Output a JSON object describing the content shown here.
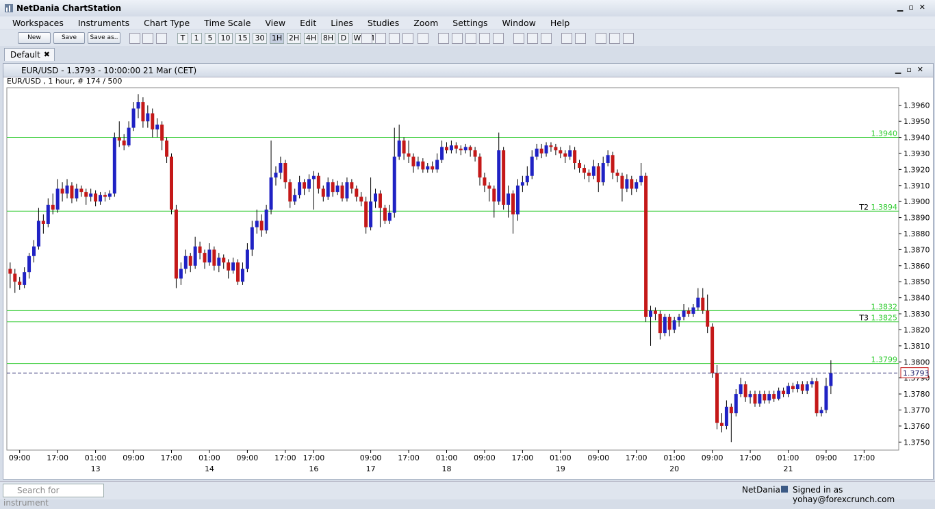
{
  "window": {
    "title": "NetDania ChartStation"
  },
  "menu": [
    "Workspaces",
    "Instruments",
    "Chart Type",
    "Time Scale",
    "View",
    "Edit",
    "Lines",
    "Studies",
    "Zoom",
    "Settings",
    "Window",
    "Help"
  ],
  "toolbar": {
    "buttons": [
      "New",
      "Save",
      "Save as.."
    ],
    "timeframes": [
      "T",
      "1",
      "5",
      "10",
      "15",
      "30",
      "1H",
      "2H",
      "4H",
      "8H",
      "D",
      "W",
      "M"
    ]
  },
  "tabs": [
    "Default"
  ],
  "chart_window": {
    "title": "EUR/USD - 1.3793 - 10:00:00  21 Mar (CET)"
  },
  "chart_data": {
    "type": "candlestick",
    "info": "EUR/USD , 1 hour, # 174 / 500",
    "up_color": "#1f22c4",
    "down_color": "#c41818",
    "grid": false,
    "xlim": [
      -0.7,
      187.3
    ],
    "ylim": [
      1.3745,
      1.3971
    ],
    "yticks": [
      {
        "value": 1.375,
        "label": "1.3750"
      },
      {
        "value": 1.376,
        "label": "1.3760"
      },
      {
        "value": 1.377,
        "label": "1.3770"
      },
      {
        "value": 1.378,
        "label": "1.3780"
      },
      {
        "value": 1.379,
        "label": "1.3790"
      },
      {
        "value": 1.38,
        "label": "1.3800"
      },
      {
        "value": 1.381,
        "label": "1.3810"
      },
      {
        "value": 1.382,
        "label": "1.3820"
      },
      {
        "value": 1.383,
        "label": "1.3830"
      },
      {
        "value": 1.384,
        "label": "1.3840"
      },
      {
        "value": 1.385,
        "label": "1.3850"
      },
      {
        "value": 1.386,
        "label": "1.3860"
      },
      {
        "value": 1.387,
        "label": "1.3870"
      },
      {
        "value": 1.388,
        "label": "1.3880"
      },
      {
        "value": 1.389,
        "label": "1.3890"
      },
      {
        "value": 1.39,
        "label": "1.3900"
      },
      {
        "value": 1.391,
        "label": "1.3910"
      },
      {
        "value": 1.392,
        "label": "1.3920"
      },
      {
        "value": 1.393,
        "label": "1.3930"
      },
      {
        "value": 1.394,
        "label": "1.3940"
      },
      {
        "value": 1.395,
        "label": "1.3950"
      },
      {
        "value": 1.396,
        "label": "1.3960"
      }
    ],
    "xticks": [
      {
        "value": 2,
        "label": "09:00"
      },
      {
        "value": 10,
        "label": "17:00"
      },
      {
        "value": 18,
        "label": "01:00"
      },
      {
        "value": 26,
        "label": "09:00"
      },
      {
        "value": 34,
        "label": "17:00"
      },
      {
        "value": 42,
        "label": "01:00"
      },
      {
        "value": 50,
        "label": "09:00"
      },
      {
        "value": 58,
        "label": "17:00"
      },
      {
        "value": 64,
        "label": "17:00"
      },
      {
        "value": 76,
        "label": "09:00"
      },
      {
        "value": 84,
        "label": "17:00"
      },
      {
        "value": 92,
        "label": "01:00"
      },
      {
        "value": 100,
        "label": "09:00"
      },
      {
        "value": 108,
        "label": "17:00"
      },
      {
        "value": 116,
        "label": "01:00"
      },
      {
        "value": 124,
        "label": "09:00"
      },
      {
        "value": 132,
        "label": "17:00"
      },
      {
        "value": 140,
        "label": "01:00"
      },
      {
        "value": 148,
        "label": "09:00"
      },
      {
        "value": 156,
        "label": "17:00"
      },
      {
        "value": 164,
        "label": "01:00"
      },
      {
        "value": 172,
        "label": "09:00"
      },
      {
        "value": 180,
        "label": "17:00"
      }
    ],
    "date_ticks": [
      {
        "value": 18,
        "label": "13"
      },
      {
        "value": 42,
        "label": "14"
      },
      {
        "value": 64,
        "label": "16"
      },
      {
        "value": 76,
        "label": "17"
      },
      {
        "value": 92,
        "label": "18"
      },
      {
        "value": 116,
        "label": "19"
      },
      {
        "value": 140,
        "label": "20"
      },
      {
        "value": 164,
        "label": "21"
      }
    ],
    "level_color": "#33cc33",
    "levels": [
      {
        "value": 1.394,
        "label": "1.3940"
      },
      {
        "value": 1.3894,
        "label": "1.3894",
        "tag": "T2"
      },
      {
        "value": 1.3832,
        "label": "1.3832"
      },
      {
        "value": 1.3825,
        "label": "1.3825",
        "tag": "T3"
      },
      {
        "value": 1.3799,
        "label": "1.3799"
      }
    ],
    "last_price": {
      "value": 1.3793,
      "label": "1.3793"
    },
    "candles": [
      [
        1.3858,
        1.3862,
        1.3846,
        1.3855
      ],
      [
        1.3855,
        1.3858,
        1.3843,
        1.385
      ],
      [
        1.385,
        1.3853,
        1.3845,
        1.3848
      ],
      [
        1.3848,
        1.3859,
        1.3846,
        1.3856
      ],
      [
        1.3856,
        1.3868,
        1.3852,
        1.3866
      ],
      [
        1.3866,
        1.3876,
        1.3862,
        1.3872
      ],
      [
        1.3872,
        1.3896,
        1.387,
        1.3888
      ],
      [
        1.3888,
        1.3892,
        1.388,
        1.3886
      ],
      [
        1.3886,
        1.3902,
        1.3884,
        1.3898
      ],
      [
        1.3898,
        1.3905,
        1.3892,
        1.3895
      ],
      [
        1.3895,
        1.3914,
        1.3893,
        1.3908
      ],
      [
        1.3908,
        1.3912,
        1.39,
        1.3905
      ],
      [
        1.3905,
        1.3914,
        1.3902,
        1.391
      ],
      [
        1.391,
        1.3912,
        1.3899,
        1.3902
      ],
      [
        1.3902,
        1.3911,
        1.39,
        1.3908
      ],
      [
        1.3908,
        1.391,
        1.3903,
        1.3906
      ],
      [
        1.3906,
        1.3908,
        1.3898,
        1.3903
      ],
      [
        1.3903,
        1.3908,
        1.39,
        1.3905
      ],
      [
        1.3905,
        1.3907,
        1.3897,
        1.39
      ],
      [
        1.39,
        1.3906,
        1.3898,
        1.3904
      ],
      [
        1.3904,
        1.3906,
        1.39,
        1.3903
      ],
      [
        1.3903,
        1.3907,
        1.3901,
        1.3905
      ],
      [
        1.3905,
        1.3943,
        1.3903,
        1.394
      ],
      [
        1.394,
        1.395,
        1.3934,
        1.3938
      ],
      [
        1.3938,
        1.3942,
        1.3932,
        1.3935
      ],
      [
        1.3935,
        1.395,
        1.3934,
        1.3946
      ],
      [
        1.3946,
        1.3962,
        1.3944,
        1.3958
      ],
      [
        1.3958,
        1.3967,
        1.3952,
        1.3962
      ],
      [
        1.3962,
        1.3965,
        1.3946,
        1.395
      ],
      [
        1.395,
        1.396,
        1.3946,
        1.3955
      ],
      [
        1.3955,
        1.3958,
        1.394,
        1.3945
      ],
      [
        1.3945,
        1.3952,
        1.394,
        1.3948
      ],
      [
        1.3948,
        1.395,
        1.3932,
        1.3938
      ],
      [
        1.3938,
        1.394,
        1.3924,
        1.3928
      ],
      [
        1.3928,
        1.393,
        1.3892,
        1.3895
      ],
      [
        1.3895,
        1.3898,
        1.3846,
        1.3852
      ],
      [
        1.3852,
        1.3862,
        1.3848,
        1.3858
      ],
      [
        1.3858,
        1.387,
        1.3855,
        1.3866
      ],
      [
        1.3866,
        1.3868,
        1.3856,
        1.386
      ],
      [
        1.386,
        1.3878,
        1.3858,
        1.3872
      ],
      [
        1.3872,
        1.3875,
        1.3864,
        1.3868
      ],
      [
        1.3868,
        1.387,
        1.3858,
        1.3862
      ],
      [
        1.3862,
        1.3874,
        1.386,
        1.387
      ],
      [
        1.387,
        1.3872,
        1.3857,
        1.386
      ],
      [
        1.386,
        1.3868,
        1.3856,
        1.3865
      ],
      [
        1.3865,
        1.3867,
        1.3858,
        1.3862
      ],
      [
        1.3862,
        1.3864,
        1.3852,
        1.3857
      ],
      [
        1.3857,
        1.3865,
        1.3855,
        1.3862
      ],
      [
        1.3862,
        1.3864,
        1.3848,
        1.385
      ],
      [
        1.385,
        1.3862,
        1.3848,
        1.3858
      ],
      [
        1.3858,
        1.3874,
        1.3856,
        1.387
      ],
      [
        1.387,
        1.3888,
        1.3866,
        1.3884
      ],
      [
        1.3884,
        1.3895,
        1.388,
        1.3888
      ],
      [
        1.3888,
        1.3892,
        1.3878,
        1.3882
      ],
      [
        1.3882,
        1.3898,
        1.388,
        1.3895
      ],
      [
        1.3895,
        1.3938,
        1.3892,
        1.3915
      ],
      [
        1.3915,
        1.3922,
        1.391,
        1.3918
      ],
      [
        1.3918,
        1.3928,
        1.3914,
        1.3924
      ],
      [
        1.3924,
        1.3926,
        1.3908,
        1.3912
      ],
      [
        1.3912,
        1.3914,
        1.3896,
        1.39
      ],
      [
        1.39,
        1.3908,
        1.3898,
        1.3904
      ],
      [
        1.3904,
        1.3916,
        1.3902,
        1.3912
      ],
      [
        1.3912,
        1.3914,
        1.3904,
        1.3908
      ],
      [
        1.3908,
        1.3917,
        1.3906,
        1.3914
      ],
      [
        1.3914,
        1.3919,
        1.3895,
        1.3916
      ],
      [
        1.3916,
        1.3918,
        1.3905,
        1.3908
      ],
      [
        1.3908,
        1.391,
        1.39,
        1.3903
      ],
      [
        1.3903,
        1.3915,
        1.3901,
        1.3912
      ],
      [
        1.3912,
        1.3914,
        1.3903,
        1.3906
      ],
      [
        1.3906,
        1.3913,
        1.3904,
        1.391
      ],
      [
        1.391,
        1.3912,
        1.39,
        1.3902
      ],
      [
        1.3902,
        1.3915,
        1.39,
        1.3912
      ],
      [
        1.3912,
        1.3914,
        1.3905,
        1.3908
      ],
      [
        1.3908,
        1.391,
        1.39,
        1.3903
      ],
      [
        1.3903,
        1.3906,
        1.3897,
        1.39
      ],
      [
        1.39,
        1.3903,
        1.388,
        1.3884
      ],
      [
        1.3884,
        1.3915,
        1.3882,
        1.39
      ],
      [
        1.39,
        1.3908,
        1.3896,
        1.3905
      ],
      [
        1.3905,
        1.3907,
        1.3884,
        1.3896
      ],
      [
        1.3896,
        1.3898,
        1.3886,
        1.3888
      ],
      [
        1.3888,
        1.3898,
        1.3886,
        1.3893
      ],
      [
        1.3893,
        1.3946,
        1.389,
        1.3928
      ],
      [
        1.3928,
        1.3948,
        1.3926,
        1.3938
      ],
      [
        1.3938,
        1.394,
        1.3926,
        1.393
      ],
      [
        1.393,
        1.3938,
        1.3924,
        1.3928
      ],
      [
        1.3928,
        1.393,
        1.3918,
        1.3922
      ],
      [
        1.3922,
        1.3928,
        1.392,
        1.3925
      ],
      [
        1.3925,
        1.3927,
        1.3918,
        1.392
      ],
      [
        1.392,
        1.3924,
        1.3918,
        1.3922
      ],
      [
        1.3922,
        1.3925,
        1.3918,
        1.392
      ],
      [
        1.392,
        1.393,
        1.3918,
        1.3926
      ],
      [
        1.3926,
        1.3938,
        1.3924,
        1.3934
      ],
      [
        1.3934,
        1.3937,
        1.393,
        1.3932
      ],
      [
        1.3932,
        1.3938,
        1.393,
        1.3935
      ],
      [
        1.3935,
        1.3937,
        1.393,
        1.3933
      ],
      [
        1.3933,
        1.3935,
        1.3929,
        1.3932
      ],
      [
        1.3932,
        1.3936,
        1.393,
        1.3934
      ],
      [
        1.3934,
        1.3935,
        1.3928,
        1.3932
      ],
      [
        1.3932,
        1.3934,
        1.3925,
        1.3928
      ],
      [
        1.3928,
        1.393,
        1.391,
        1.3915
      ],
      [
        1.3915,
        1.3918,
        1.3906,
        1.391
      ],
      [
        1.391,
        1.3912,
        1.39,
        1.3908
      ],
      [
        1.3908,
        1.391,
        1.389,
        1.39
      ],
      [
        1.39,
        1.3943,
        1.3898,
        1.3932
      ],
      [
        1.3932,
        1.3934,
        1.3895,
        1.3898
      ],
      [
        1.3898,
        1.391,
        1.389,
        1.3905
      ],
      [
        1.3905,
        1.3907,
        1.388,
        1.3892
      ],
      [
        1.3892,
        1.3914,
        1.3888,
        1.391
      ],
      [
        1.391,
        1.3916,
        1.3906,
        1.3912
      ],
      [
        1.3912,
        1.3922,
        1.391,
        1.3916
      ],
      [
        1.3916,
        1.3932,
        1.3914,
        1.3928
      ],
      [
        1.3928,
        1.3936,
        1.3926,
        1.3933
      ],
      [
        1.3933,
        1.3936,
        1.3927,
        1.393
      ],
      [
        1.393,
        1.3937,
        1.3928,
        1.3935
      ],
      [
        1.3935,
        1.3937,
        1.3931,
        1.3934
      ],
      [
        1.3934,
        1.3936,
        1.3929,
        1.3932
      ],
      [
        1.3932,
        1.3934,
        1.3927,
        1.393
      ],
      [
        1.393,
        1.3932,
        1.3924,
        1.3928
      ],
      [
        1.3928,
        1.3935,
        1.3926,
        1.3932
      ],
      [
        1.3932,
        1.3934,
        1.392,
        1.3924
      ],
      [
        1.3924,
        1.3926,
        1.3918,
        1.3921
      ],
      [
        1.3921,
        1.3923,
        1.3914,
        1.3918
      ],
      [
        1.3918,
        1.392,
        1.3912,
        1.3916
      ],
      [
        1.3916,
        1.3926,
        1.3914,
        1.3922
      ],
      [
        1.3922,
        1.3924,
        1.3906,
        1.3912
      ],
      [
        1.3912,
        1.3928,
        1.391,
        1.3924
      ],
      [
        1.3924,
        1.3932,
        1.3922,
        1.3929
      ],
      [
        1.3929,
        1.3931,
        1.3914,
        1.3918
      ],
      [
        1.3918,
        1.392,
        1.3912,
        1.3916
      ],
      [
        1.3916,
        1.3918,
        1.39,
        1.3908
      ],
      [
        1.3908,
        1.3917,
        1.3906,
        1.3914
      ],
      [
        1.3914,
        1.3916,
        1.3904,
        1.3908
      ],
      [
        1.3908,
        1.3914,
        1.3906,
        1.3912
      ],
      [
        1.3912,
        1.3924,
        1.391,
        1.3916
      ],
      [
        1.3916,
        1.3918,
        1.3825,
        1.3828
      ],
      [
        1.3828,
        1.3835,
        1.381,
        1.3832
      ],
      [
        1.3832,
        1.3834,
        1.3826,
        1.383
      ],
      [
        1.383,
        1.3832,
        1.3814,
        1.3818
      ],
      [
        1.3818,
        1.383,
        1.3816,
        1.3828
      ],
      [
        1.3828,
        1.383,
        1.3816,
        1.382
      ],
      [
        1.382,
        1.3828,
        1.3818,
        1.3826
      ],
      [
        1.3826,
        1.383,
        1.3822,
        1.3828
      ],
      [
        1.3828,
        1.3836,
        1.3826,
        1.3832
      ],
      [
        1.3832,
        1.3834,
        1.3828,
        1.383
      ],
      [
        1.383,
        1.3836,
        1.3828,
        1.3834
      ],
      [
        1.3834,
        1.3846,
        1.3832,
        1.384
      ],
      [
        1.384,
        1.3846,
        1.383,
        1.3832
      ],
      [
        1.3832,
        1.3842,
        1.3818,
        1.3822
      ],
      [
        1.3822,
        1.3824,
        1.379,
        1.3793
      ],
      [
        1.3793,
        1.3798,
        1.3758,
        1.3762
      ],
      [
        1.3762,
        1.3768,
        1.3756,
        1.376
      ],
      [
        1.376,
        1.3776,
        1.3758,
        1.3772
      ],
      [
        1.3772,
        1.3774,
        1.375,
        1.3768
      ],
      [
        1.3768,
        1.3783,
        1.3766,
        1.378
      ],
      [
        1.378,
        1.379,
        1.3778,
        1.3786
      ],
      [
        1.3786,
        1.3788,
        1.3775,
        1.3778
      ],
      [
        1.3778,
        1.3782,
        1.3774,
        1.378
      ],
      [
        1.378,
        1.3782,
        1.3772,
        1.3774
      ],
      [
        1.3774,
        1.3782,
        1.3772,
        1.378
      ],
      [
        1.378,
        1.3782,
        1.3774,
        1.3776
      ],
      [
        1.3776,
        1.3782,
        1.3774,
        1.378
      ],
      [
        1.378,
        1.3782,
        1.3775,
        1.3777
      ],
      [
        1.3777,
        1.3784,
        1.3776,
        1.3782
      ],
      [
        1.3782,
        1.3784,
        1.3778,
        1.378
      ],
      [
        1.378,
        1.3787,
        1.3778,
        1.3785
      ],
      [
        1.3785,
        1.3787,
        1.3781,
        1.3783
      ],
      [
        1.3783,
        1.3788,
        1.3781,
        1.3786
      ],
      [
        1.3786,
        1.3788,
        1.378,
        1.3782
      ],
      [
        1.3782,
        1.3788,
        1.378,
        1.3786
      ],
      [
        1.3786,
        1.379,
        1.3784,
        1.3788
      ],
      [
        1.3788,
        1.379,
        1.3766,
        1.3768
      ],
      [
        1.3768,
        1.3772,
        1.3766,
        1.377
      ],
      [
        1.377,
        1.379,
        1.3768,
        1.3785
      ],
      [
        1.3785,
        1.3801,
        1.378,
        1.3793
      ]
    ]
  },
  "status_bar": {
    "search_placeholder": "Search for instrument",
    "brand": "NetDania",
    "signed_in": "Signed in as yohay@forexcrunch.com"
  }
}
